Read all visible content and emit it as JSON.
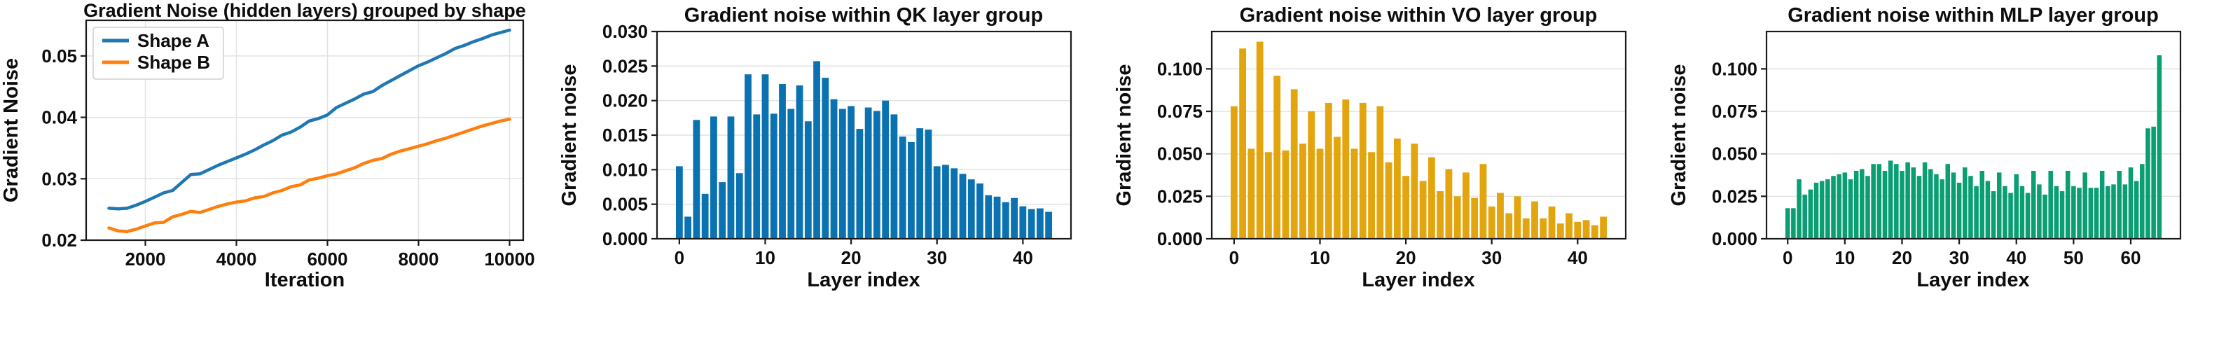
{
  "page": {
    "background": "#ffffff"
  },
  "chart_data": [
    {
      "type": "line",
      "title": "Gradient Noise (hidden layers) grouped by shape",
      "xlabel": "Iteration",
      "ylabel": "Gradient Noise",
      "xlim": [
        700,
        10300
      ],
      "ylim": [
        0.02,
        0.0558
      ],
      "xtick_values": [
        2000,
        4000,
        6000,
        8000,
        10000
      ],
      "xtick_labels": [
        "2000",
        "4000",
        "6000",
        "8000",
        "10000"
      ],
      "ytick_values": [
        0.02,
        0.03,
        0.04,
        0.05
      ],
      "ytick_labels": [
        "0.02",
        "0.03",
        "0.04",
        "0.05"
      ],
      "grid": "both",
      "legend": {
        "position": "upper-left"
      },
      "series": [
        {
          "name": "Shape A",
          "color": "#1f77b4",
          "x": [
            1200,
            1400,
            1600,
            1800,
            2000,
            2200,
            2400,
            2600,
            2800,
            3000,
            3200,
            3400,
            3600,
            3800,
            4000,
            4200,
            4400,
            4600,
            4800,
            5000,
            5200,
            5400,
            5600,
            5800,
            6000,
            6200,
            6400,
            6600,
            6800,
            7000,
            7200,
            7400,
            7600,
            7800,
            8000,
            8200,
            8400,
            8600,
            8800,
            9000,
            9200,
            9400,
            9600,
            9800,
            10000
          ],
          "y": [
            0.0252,
            0.0251,
            0.0252,
            0.0257,
            0.0263,
            0.027,
            0.0277,
            0.0281,
            0.0294,
            0.0307,
            0.0308,
            0.0315,
            0.0322,
            0.0328,
            0.0334,
            0.034,
            0.0347,
            0.0355,
            0.0362,
            0.0371,
            0.0376,
            0.0384,
            0.0394,
            0.0398,
            0.0404,
            0.0416,
            0.0423,
            0.043,
            0.0438,
            0.0442,
            0.0452,
            0.046,
            0.0468,
            0.0476,
            0.0484,
            0.049,
            0.0497,
            0.0504,
            0.0512,
            0.0517,
            0.0523,
            0.0528,
            0.0534,
            0.0538,
            0.0542
          ]
        },
        {
          "name": "Shape B",
          "color": "#ff7f0e",
          "x": [
            1200,
            1400,
            1600,
            1800,
            2000,
            2200,
            2400,
            2600,
            2800,
            3000,
            3200,
            3400,
            3600,
            3800,
            4000,
            4200,
            4400,
            4600,
            4800,
            5000,
            5200,
            5400,
            5600,
            5800,
            6000,
            6200,
            6400,
            6600,
            6800,
            7000,
            7200,
            7400,
            7600,
            7800,
            8000,
            8200,
            8400,
            8600,
            8800,
            9000,
            9200,
            9400,
            9600,
            9800,
            10000
          ],
          "y": [
            0.022,
            0.0215,
            0.0214,
            0.0218,
            0.0223,
            0.0228,
            0.0229,
            0.0238,
            0.0242,
            0.0247,
            0.0245,
            0.025,
            0.0255,
            0.0259,
            0.0262,
            0.0264,
            0.0269,
            0.0271,
            0.0277,
            0.0281,
            0.0287,
            0.029,
            0.0298,
            0.0301,
            0.0305,
            0.0308,
            0.0313,
            0.0318,
            0.0325,
            0.033,
            0.0333,
            0.034,
            0.0345,
            0.0349,
            0.0353,
            0.0357,
            0.0362,
            0.0366,
            0.0371,
            0.0376,
            0.0381,
            0.0386,
            0.039,
            0.0394,
            0.0397
          ]
        }
      ]
    },
    {
      "type": "bar",
      "title": "Gradient noise within QK layer group",
      "xlabel": "Layer index",
      "ylabel": "Gradient noise",
      "bar_color": "#0b72b2",
      "xlim": [
        -2.6,
        45.6
      ],
      "ylim": [
        0,
        0.03
      ],
      "xtick_values": [
        0,
        10,
        20,
        30,
        40
      ],
      "xtick_labels": [
        "0",
        "10",
        "20",
        "30",
        "40"
      ],
      "ytick_values": [
        0.0,
        0.005,
        0.01,
        0.015,
        0.02,
        0.025,
        0.03
      ],
      "ytick_labels": [
        "0.000",
        "0.005",
        "0.010",
        "0.015",
        "0.020",
        "0.025",
        "0.030"
      ],
      "grid": "y",
      "categories": [
        0,
        1,
        2,
        3,
        4,
        5,
        6,
        7,
        8,
        9,
        10,
        11,
        12,
        13,
        14,
        15,
        16,
        17,
        18,
        19,
        20,
        21,
        22,
        23,
        24,
        25,
        26,
        27,
        28,
        29,
        30,
        31,
        32,
        33,
        34,
        35,
        36,
        37,
        38,
        39,
        40,
        41,
        42,
        43
      ],
      "values": [
        0.0105,
        0.0032,
        0.0172,
        0.0065,
        0.0177,
        0.0082,
        0.0177,
        0.0095,
        0.0238,
        0.018,
        0.0238,
        0.0181,
        0.0224,
        0.0188,
        0.0222,
        0.017,
        0.0257,
        0.0233,
        0.0202,
        0.0188,
        0.0192,
        0.0159,
        0.019,
        0.0185,
        0.02,
        0.018,
        0.0148,
        0.014,
        0.016,
        0.0158,
        0.0105,
        0.0107,
        0.0102,
        0.0094,
        0.0086,
        0.008,
        0.0063,
        0.0061,
        0.0053,
        0.0059,
        0.0047,
        0.0043,
        0.0044,
        0.0039
      ]
    },
    {
      "type": "bar",
      "title": "Gradient noise within VO layer group",
      "xlabel": "Layer index",
      "ylabel": "Gradient noise",
      "bar_color": "#e3a50d",
      "xlim": [
        -2.6,
        45.6
      ],
      "ylim": [
        0,
        0.122
      ],
      "xtick_values": [
        0,
        10,
        20,
        30,
        40
      ],
      "xtick_labels": [
        "0",
        "10",
        "20",
        "30",
        "40"
      ],
      "ytick_values": [
        0.0,
        0.025,
        0.05,
        0.075,
        0.1
      ],
      "ytick_labels": [
        "0.000",
        "0.025",
        "0.050",
        "0.075",
        "0.100"
      ],
      "grid": "y",
      "categories": [
        0,
        1,
        2,
        3,
        4,
        5,
        6,
        7,
        8,
        9,
        10,
        11,
        12,
        13,
        14,
        15,
        16,
        17,
        18,
        19,
        20,
        21,
        22,
        23,
        24,
        25,
        26,
        27,
        28,
        29,
        30,
        31,
        32,
        33,
        34,
        35,
        36,
        37,
        38,
        39,
        40,
        41,
        42,
        43
      ],
      "values": [
        0.078,
        0.112,
        0.053,
        0.116,
        0.051,
        0.096,
        0.052,
        0.088,
        0.056,
        0.075,
        0.053,
        0.08,
        0.06,
        0.082,
        0.053,
        0.08,
        0.051,
        0.078,
        0.045,
        0.059,
        0.037,
        0.056,
        0.034,
        0.048,
        0.028,
        0.041,
        0.025,
        0.039,
        0.024,
        0.044,
        0.019,
        0.027,
        0.015,
        0.025,
        0.012,
        0.022,
        0.012,
        0.019,
        0.009,
        0.015,
        0.01,
        0.011,
        0.008,
        0.013
      ]
    },
    {
      "type": "bar",
      "title": "Gradient noise within MLP layer group",
      "xlabel": "Layer index",
      "ylabel": "Gradient noise",
      "bar_color": "#0a9e73",
      "xlim": [
        -3.7,
        68.7
      ],
      "ylim": [
        0,
        0.122
      ],
      "xtick_values": [
        0,
        10,
        20,
        30,
        40,
        50,
        60
      ],
      "xtick_labels": [
        "0",
        "10",
        "20",
        "30",
        "40",
        "50",
        "60"
      ],
      "ytick_values": [
        0.0,
        0.025,
        0.05,
        0.075,
        0.1
      ],
      "ytick_labels": [
        "0.000",
        "0.025",
        "0.050",
        "0.075",
        "0.100"
      ],
      "grid": "y",
      "categories": [
        0,
        1,
        2,
        3,
        4,
        5,
        6,
        7,
        8,
        9,
        10,
        11,
        12,
        13,
        14,
        15,
        16,
        17,
        18,
        19,
        20,
        21,
        22,
        23,
        24,
        25,
        26,
        27,
        28,
        29,
        30,
        31,
        32,
        33,
        34,
        35,
        36,
        37,
        38,
        39,
        40,
        41,
        42,
        43,
        44,
        45,
        46,
        47,
        48,
        49,
        50,
        51,
        52,
        53,
        54,
        55,
        56,
        57,
        58,
        59,
        60,
        61,
        62,
        63,
        64,
        65
      ],
      "values": [
        0.018,
        0.018,
        0.035,
        0.026,
        0.029,
        0.033,
        0.034,
        0.035,
        0.037,
        0.038,
        0.039,
        0.035,
        0.04,
        0.041,
        0.037,
        0.044,
        0.044,
        0.04,
        0.046,
        0.044,
        0.04,
        0.045,
        0.042,
        0.037,
        0.045,
        0.041,
        0.038,
        0.035,
        0.044,
        0.039,
        0.033,
        0.042,
        0.037,
        0.031,
        0.04,
        0.034,
        0.028,
        0.039,
        0.031,
        0.027,
        0.038,
        0.031,
        0.027,
        0.04,
        0.032,
        0.026,
        0.04,
        0.031,
        0.028,
        0.04,
        0.031,
        0.03,
        0.039,
        0.03,
        0.03,
        0.04,
        0.031,
        0.032,
        0.04,
        0.032,
        0.042,
        0.034,
        0.044,
        0.065,
        0.066,
        0.108
      ]
    }
  ]
}
